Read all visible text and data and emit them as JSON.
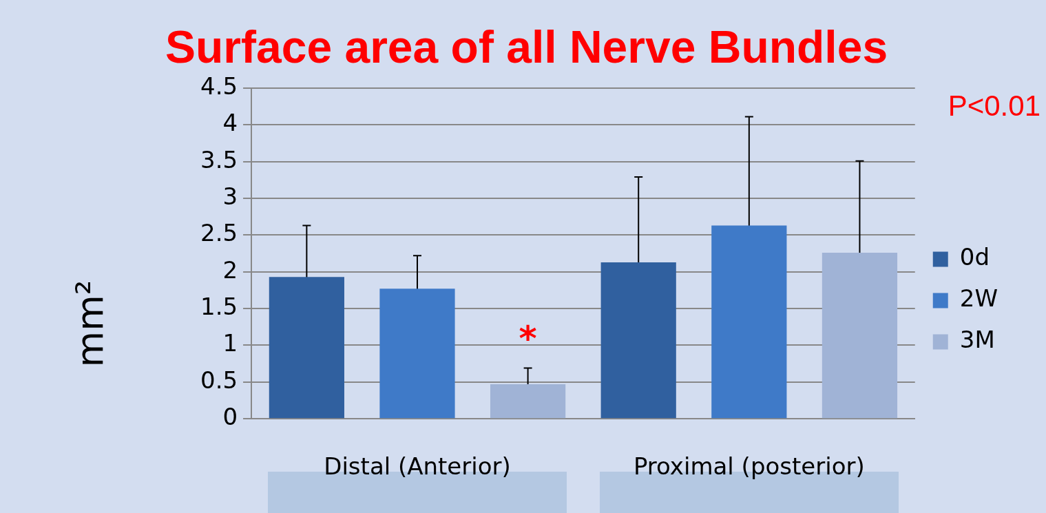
{
  "chart_data": {
    "type": "bar",
    "title": "Surface area of all Nerve Bundles",
    "ylabel": "mm²",
    "categories": [
      "Distal (Anterior)",
      "Proximal (posterior)"
    ],
    "series": [
      {
        "name": "0d",
        "color": "#30609f",
        "values": [
          1.93,
          2.13
        ],
        "errors": [
          0.7,
          1.16
        ]
      },
      {
        "name": "2W",
        "color": "#3f7ac8",
        "values": [
          1.77,
          2.63
        ],
        "errors": [
          0.45,
          1.48
        ]
      },
      {
        "name": "3M",
        "color": "#a0b3d6",
        "values": [
          0.47,
          2.26
        ],
        "errors": [
          0.22,
          1.25
        ]
      }
    ],
    "ylim": [
      0,
      4.5
    ],
    "yticks": [
      0,
      0.5,
      1,
      1.5,
      2,
      2.5,
      3,
      3.5,
      4,
      4.5
    ],
    "grid": "y",
    "legend": "right",
    "annotations": [
      "*",
      "P<0.01"
    ]
  }
}
